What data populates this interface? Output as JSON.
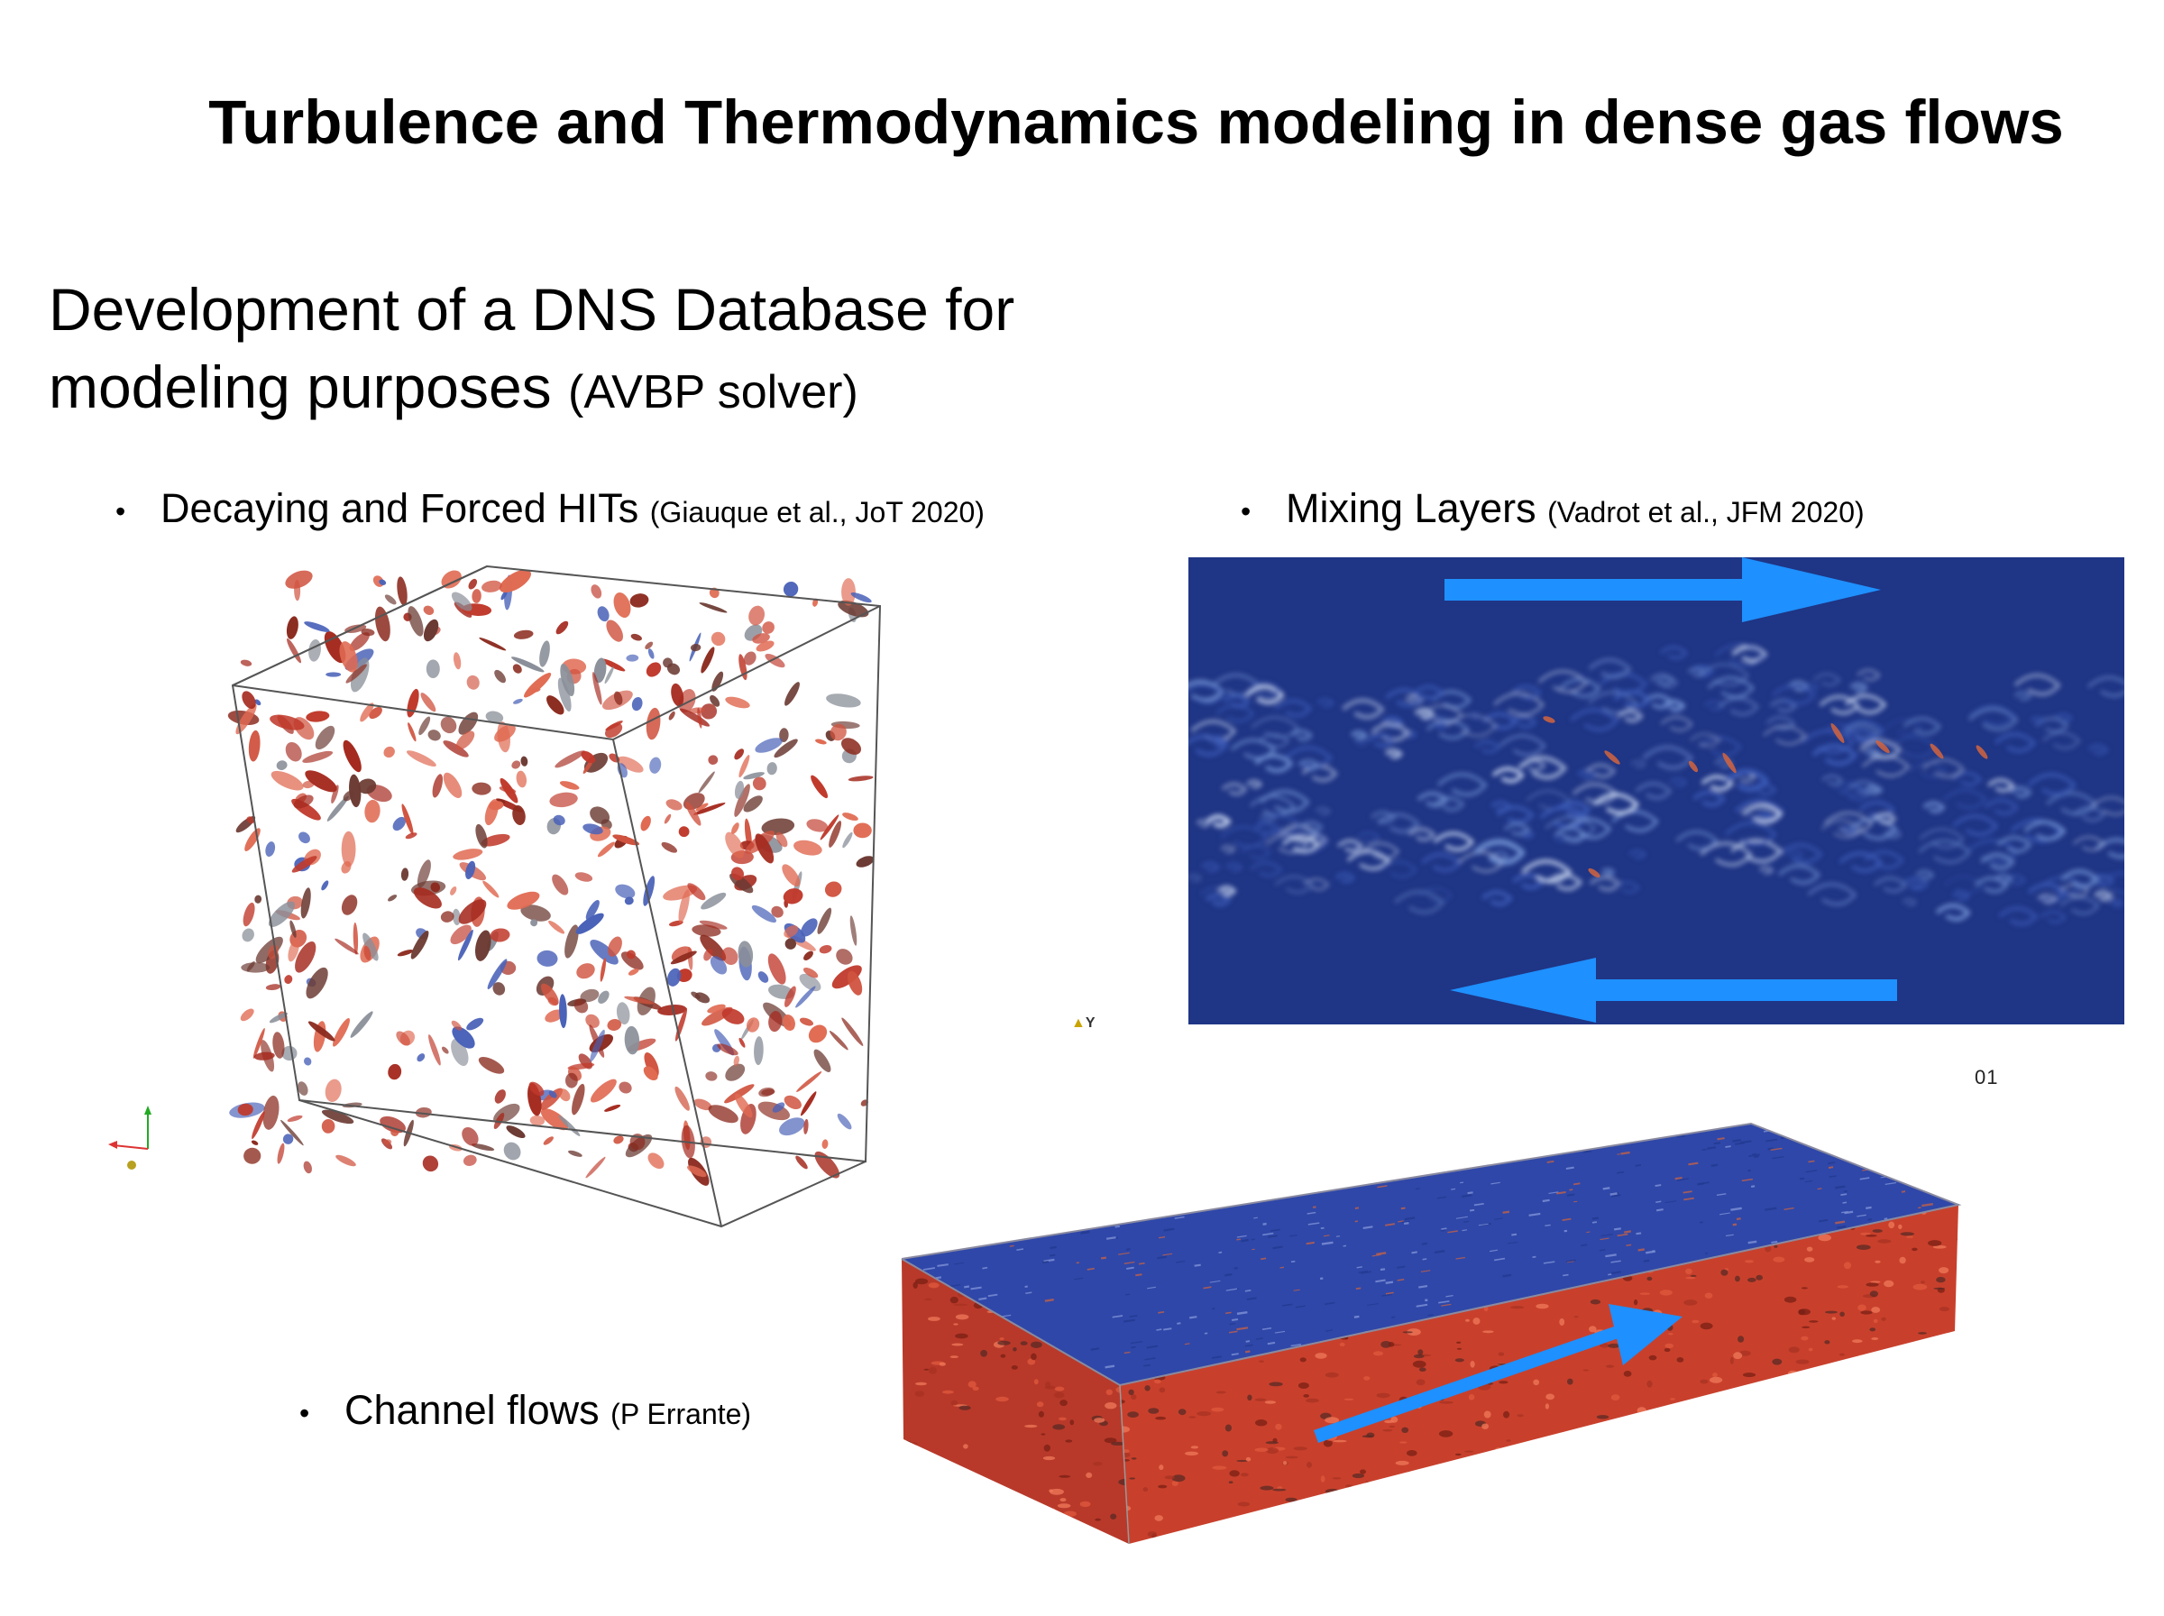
{
  "title": "Turbulence and Thermodynamics modeling in dense gas flows",
  "subtitle": {
    "main": "Development of a DNS Database for modeling purposes",
    "note": "(AVBP solver)"
  },
  "bullets": [
    {
      "label": "Decaying and Forced HITs",
      "cite": "(Giauque et al., JoT 2020)"
    },
    {
      "label": "Mixing Layers",
      "cite": "(Vadrot et al., JFM 2020)"
    },
    {
      "label": "Channel flows",
      "cite": "(P Errante)"
    }
  ],
  "figure_marks": {
    "axis_tag": "Y",
    "frame_code": "01"
  },
  "colors": {
    "flow_arrow": "#1e90ff",
    "mixing_bg": "#1f3585",
    "vortex_red": "#c0392b",
    "vortex_blue": "#3b5bb0"
  },
  "icons": {
    "bullet": "bullet-dot",
    "axes": "xyz-axes-icon",
    "arrow": "flow-direction-arrow"
  }
}
